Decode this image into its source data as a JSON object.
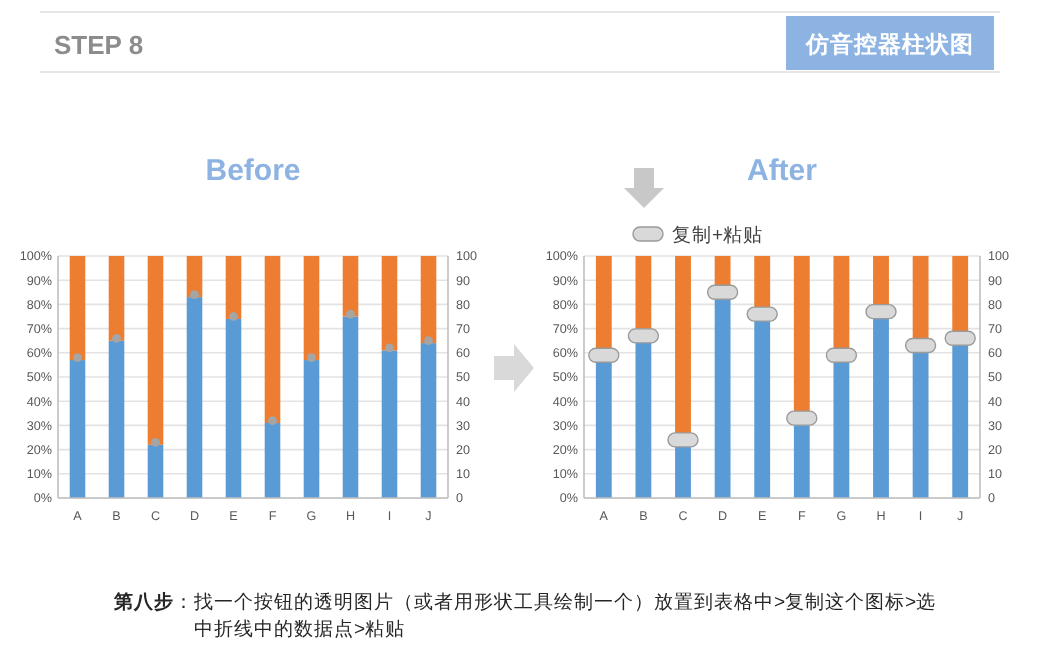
{
  "chart_data": [
    {
      "type": "bar",
      "stacked": true,
      "title": "Before",
      "categories": [
        "A",
        "B",
        "C",
        "D",
        "E",
        "F",
        "G",
        "H",
        "I",
        "J"
      ],
      "series": [
        {
          "color": "#5b9bd5",
          "values": [
            57,
            65,
            22,
            83,
            74,
            31,
            57,
            75,
            61,
            64
          ]
        },
        {
          "color": "#ed7d31",
          "values": [
            43,
            35,
            78,
            17,
            26,
            69,
            43,
            25,
            39,
            36
          ]
        },
        {
          "type": "scatter",
          "axis": "y2",
          "marker": "circle",
          "color": "#a5a5a5",
          "values": [
            58,
            66,
            23,
            84,
            75,
            32,
            58,
            76,
            62,
            65
          ]
        }
      ],
      "ylim": [
        0,
        100
      ],
      "yticks": [
        {
          "value": 0,
          "label": "0%"
        },
        {
          "value": 10,
          "label": "10%"
        },
        {
          "value": 20,
          "label": "20%"
        },
        {
          "value": 30,
          "label": "30%"
        },
        {
          "value": 40,
          "label": "40%"
        },
        {
          "value": 50,
          "label": "50%"
        },
        {
          "value": 60,
          "label": "60%"
        },
        {
          "value": 70,
          "label": "70%"
        },
        {
          "value": 80,
          "label": "80%"
        },
        {
          "value": 90,
          "label": "90%"
        },
        {
          "value": 100,
          "label": "100%"
        }
      ],
      "y2lim": [
        0,
        100
      ],
      "y2ticks": [
        0,
        10,
        20,
        30,
        40,
        50,
        60,
        70,
        80,
        90,
        100
      ],
      "grid": "y",
      "annotations": [
        "STEP 8",
        "仿音控器柱状图"
      ]
    },
    {
      "type": "bar",
      "stacked": true,
      "title": "After",
      "categories": [
        "A",
        "B",
        "C",
        "D",
        "E",
        "F",
        "G",
        "H",
        "I",
        "J"
      ],
      "series": [
        {
          "color": "#5b9bd5",
          "values": [
            57,
            65,
            22,
            83,
            74,
            31,
            57,
            75,
            61,
            64
          ]
        },
        {
          "color": "#ed7d31",
          "values": [
            43,
            35,
            78,
            17,
            26,
            69,
            43,
            25,
            39,
            36
          ]
        },
        {
          "type": "scatter",
          "axis": "y2",
          "marker": "square",
          "name": "复制+粘贴",
          "color": "#d9d9d9",
          "values": [
            59,
            67,
            24,
            85,
            76,
            33,
            59,
            77,
            63,
            66
          ]
        }
      ],
      "ylim": [
        0,
        100
      ],
      "yticks": [
        {
          "value": 0,
          "label": "0%"
        },
        {
          "value": 10,
          "label": "10%"
        },
        {
          "value": 20,
          "label": "20%"
        },
        {
          "value": 30,
          "label": "30%"
        },
        {
          "value": 40,
          "label": "40%"
        },
        {
          "value": 50,
          "label": "50%"
        },
        {
          "value": 60,
          "label": "60%"
        },
        {
          "value": 70,
          "label": "70%"
        },
        {
          "value": 80,
          "label": "80%"
        },
        {
          "value": 90,
          "label": "90%"
        },
        {
          "value": 100,
          "label": "100%"
        }
      ],
      "y2lim": [
        0,
        100
      ],
      "y2ticks": [
        0,
        10,
        20,
        30,
        40,
        50,
        60,
        70,
        80,
        90,
        100
      ],
      "grid": "y",
      "legend": "top",
      "annotations": [
        "第八步：找一个按钮的透明图片（或者用形状工具绘制一个）放置到表格中>复制这个图标>选中折线中的数据点>粘贴"
      ]
    }
  ]
}
